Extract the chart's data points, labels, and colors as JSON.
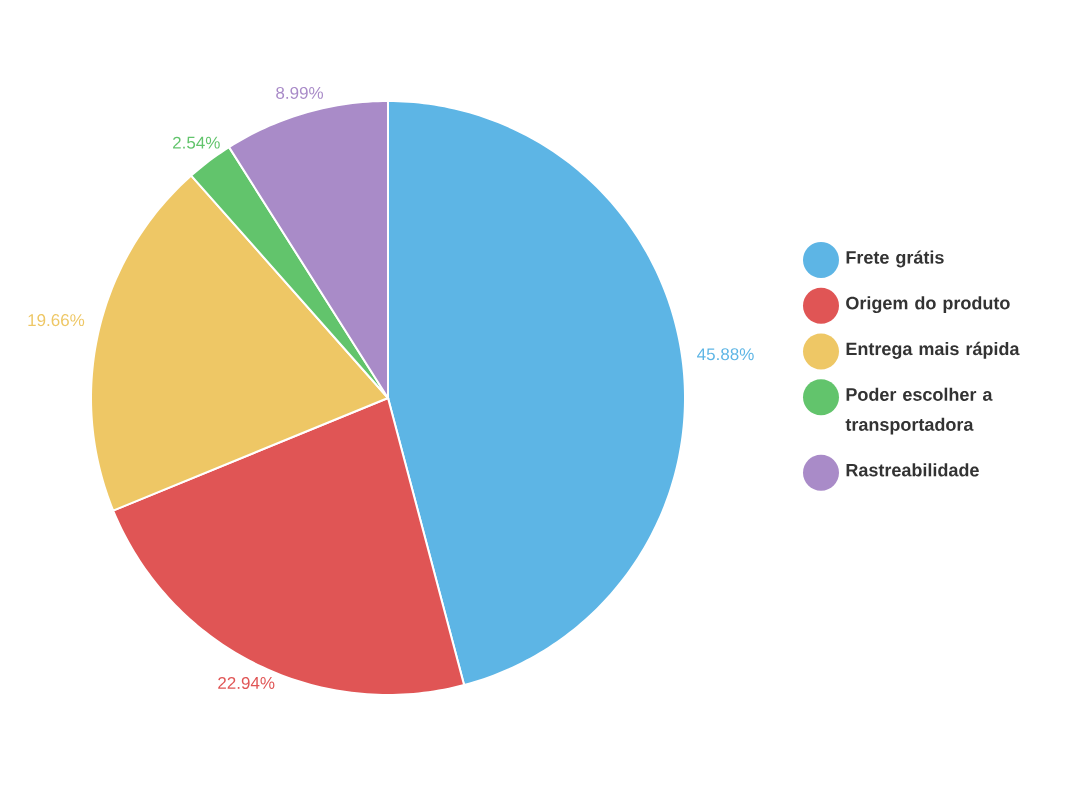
{
  "chart_data": {
    "type": "pie",
    "categories": [
      "Frete grátis",
      "Origem do produto",
      "Entrega mais rápida",
      "Poder escolher a transportadora",
      "Rastreabilidade"
    ],
    "values": [
      45.88,
      22.94,
      19.66,
      2.54,
      8.99
    ],
    "colors": [
      "#5db5e5",
      "#e05555",
      "#eec765",
      "#62c46c",
      "#a98bc8"
    ],
    "value_labels": [
      "45.88%",
      "22.94%",
      "19.66%",
      "2.54%",
      "8.99%"
    ],
    "legend": "right"
  }
}
